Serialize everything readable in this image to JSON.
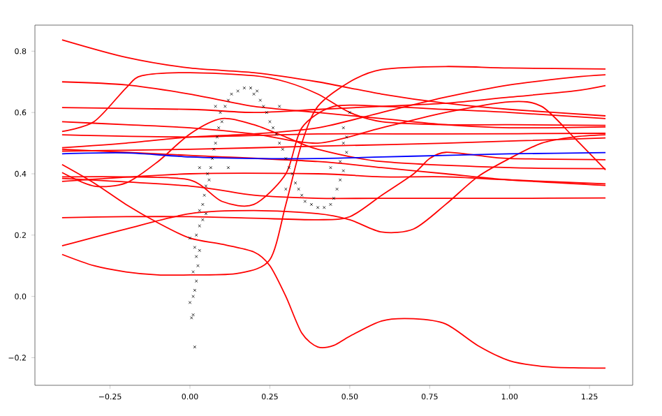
{
  "chart_data": {
    "type": "line",
    "xlim": [
      -0.485,
      1.385
    ],
    "ylim": [
      -0.29,
      0.885
    ],
    "line_style": "solid",
    "xticks": [
      {
        "value": -0.25,
        "label": "−0.25"
      },
      {
        "value": 0,
        "label": "0.00"
      },
      {
        "value": 0.25,
        "label": "0.25"
      },
      {
        "value": 0.5,
        "label": "0.50"
      },
      {
        "value": 0.75,
        "label": "0.75"
      },
      {
        "value": 1.0,
        "label": "1.00"
      },
      {
        "value": 1.25,
        "label": "1.25"
      }
    ],
    "yticks": [
      {
        "value": -0.2,
        "label": "−0.2"
      },
      {
        "value": 0,
        "label": "0.0"
      },
      {
        "value": 0.2,
        "label": "0.2"
      },
      {
        "value": 0.4,
        "label": "0.4"
      },
      {
        "value": 0.6,
        "label": "0.6"
      },
      {
        "value": 0.8,
        "label": "0.8"
      }
    ],
    "series": [
      {
        "color": "#ff0000",
        "x": [
          -0.4,
          -0.2,
          0,
          0.2,
          0.4,
          0.6,
          0.8,
          1.0,
          1.3
        ],
        "values": [
          0.837,
          0.78,
          0.745,
          0.73,
          0.7,
          0.66,
          0.63,
          0.61,
          0.589
        ]
      },
      {
        "color": "#ff0000",
        "x": [
          -0.4,
          -0.2,
          0,
          0.2,
          0.4,
          0.6,
          0.8,
          1.0,
          1.3
        ],
        "values": [
          0.7,
          0.69,
          0.66,
          0.62,
          0.6,
          0.58,
          0.56,
          0.55,
          0.553
        ]
      },
      {
        "color": "#ff0000",
        "x": [
          -0.4,
          -0.3,
          -0.2,
          -0.15,
          0,
          0.2,
          0.3,
          0.4,
          0.5,
          0.6,
          0.8,
          1.0,
          1.3
        ],
        "values": [
          0.538,
          0.57,
          0.68,
          0.72,
          0.73,
          0.72,
          0.7,
          0.66,
          0.6,
          0.57,
          0.56,
          0.56,
          0.558
        ]
      },
      {
        "color": "#ff0000",
        "x": [
          -0.4,
          -0.2,
          0,
          0.2,
          0.4,
          0.6,
          0.8,
          1.0,
          1.2,
          1.3
        ],
        "values": [
          0.485,
          0.5,
          0.52,
          0.53,
          0.55,
          0.6,
          0.65,
          0.69,
          0.715,
          0.723
        ]
      },
      {
        "color": "#ff0000",
        "x": [
          -0.4,
          0,
          0.2,
          0.4,
          0.6,
          0.8,
          1.0,
          1.2,
          1.3
        ],
        "values": [
          0.616,
          0.61,
          0.6,
          0.61,
          0.62,
          0.63,
          0.65,
          0.67,
          0.688
        ]
      },
      {
        "color": "#ff0000",
        "x": [
          -0.4,
          -0.2,
          0,
          0.2,
          0.4,
          0.6,
          0.8,
          1.0,
          1.1,
          1.2,
          1.3
        ],
        "values": [
          0.57,
          0.56,
          0.55,
          0.53,
          0.5,
          0.55,
          0.6,
          0.635,
          0.62,
          0.52,
          0.413
        ]
      },
      {
        "color": "#ff0000",
        "x": [
          -0.4,
          0,
          0.4,
          0.8,
          1.3
        ],
        "values": [
          0.527,
          0.52,
          0.53,
          0.53,
          0.532
        ]
      },
      {
        "color": "#ff0000",
        "x": [
          -0.4,
          0,
          0.4,
          0.8,
          1.3
        ],
        "values": [
          0.474,
          0.48,
          0.49,
          0.5,
          0.517
        ]
      },
      {
        "color": "#ff0000",
        "x": [
          -0.4,
          -0.3,
          -0.2,
          -0.1,
          0,
          0.15,
          0.25,
          0.3,
          0.35,
          0.4,
          0.5,
          0.6,
          0.8,
          1.0,
          1.3
        ],
        "values": [
          0.137,
          0.1,
          0.08,
          0.07,
          0.07,
          0.075,
          0.12,
          0.3,
          0.5,
          0.62,
          0.7,
          0.74,
          0.75,
          0.745,
          0.742
        ]
      },
      {
        "color": "#ff0000",
        "x": [
          -0.4,
          -0.3,
          -0.2,
          -0.1,
          0,
          0.1,
          0.2,
          0.25,
          0.3,
          0.35,
          0.4,
          0.45,
          0.5,
          0.6,
          0.7,
          0.8,
          0.9,
          1.0,
          1.1,
          1.2,
          1.3
        ],
        "values": [
          0.43,
          0.37,
          0.3,
          0.24,
          0.19,
          0.17,
          0.145,
          0.1,
          0.0,
          -0.12,
          -0.165,
          -0.16,
          -0.13,
          -0.08,
          -0.073,
          -0.09,
          -0.16,
          -0.21,
          -0.228,
          -0.233,
          -0.234
        ]
      },
      {
        "color": "#ff0000",
        "x": [
          -0.4,
          -0.3,
          -0.2,
          -0.1,
          0,
          0.1,
          0.2,
          0.3,
          0.4,
          0.6,
          1.0,
          1.3
        ],
        "values": [
          0.404,
          0.36,
          0.37,
          0.44,
          0.53,
          0.58,
          0.56,
          0.52,
          0.48,
          0.44,
          0.42,
          0.417
        ]
      },
      {
        "color": "#ff0000",
        "x": [
          -0.4,
          -0.2,
          0,
          0.1,
          0.2,
          0.3,
          0.35,
          0.45,
          0.6,
          0.8,
          1.0,
          1.3
        ],
        "values": [
          0.39,
          0.39,
          0.38,
          0.31,
          0.3,
          0.4,
          0.55,
          0.62,
          0.62,
          0.61,
          0.6,
          0.58
        ]
      },
      {
        "color": "#ff0000",
        "x": [
          -0.4,
          0,
          0.4,
          0.6,
          0.8,
          1.0,
          1.3
        ],
        "values": [
          0.375,
          0.4,
          0.4,
          0.39,
          0.39,
          0.38,
          0.367
        ]
      },
      {
        "color": "#ff0000",
        "x": [
          -0.4,
          -0.2,
          0,
          0.2,
          0.4,
          0.5,
          0.6,
          0.7,
          0.75,
          0.8,
          0.9,
          1.0,
          1.3
        ],
        "values": [
          0.257,
          0.26,
          0.26,
          0.255,
          0.25,
          0.26,
          0.33,
          0.4,
          0.45,
          0.47,
          0.46,
          0.45,
          0.446
        ]
      },
      {
        "color": "#ff0000",
        "x": [
          -0.4,
          -0.2,
          0,
          0.2,
          0.4,
          0.5,
          0.6,
          0.7,
          0.8,
          0.9,
          1.0,
          1.1,
          1.2,
          1.3
        ],
        "values": [
          0.165,
          0.22,
          0.27,
          0.28,
          0.27,
          0.25,
          0.21,
          0.22,
          0.3,
          0.39,
          0.45,
          0.5,
          0.52,
          0.527
        ]
      },
      {
        "color": "#ff0000",
        "x": [
          -0.4,
          0,
          0.2,
          0.4,
          0.6,
          1.0,
          1.3
        ],
        "values": [
          0.385,
          0.36,
          0.33,
          0.32,
          0.32,
          0.32,
          0.321
        ]
      },
      {
        "color": "#ff0000",
        "x": [
          -0.4,
          0,
          0.4,
          0.6,
          0.8,
          1.0,
          1.3
        ],
        "values": [
          0.48,
          0.46,
          0.44,
          0.42,
          0.4,
          0.38,
          0.362
        ]
      },
      {
        "color": "#0000ff",
        "x": [
          -0.4,
          -0.2,
          0,
          0.2,
          0.4,
          0.6,
          0.8,
          1.0,
          1.3
        ],
        "values": [
          0.465,
          0.468,
          0.455,
          0.45,
          0.45,
          0.455,
          0.46,
          0.465,
          0.469
        ]
      },
      {
        "type": "scatter",
        "marker": "cross",
        "color": "#000000",
        "x": [
          0.015,
          0.005,
          0.01,
          0.0,
          0.01,
          0.015,
          0.02,
          0.01,
          0.025,
          0.02,
          0.015,
          0.0,
          0.03,
          0.02,
          0.03,
          0.04,
          0.03,
          0.04,
          0.05,
          0.045,
          0.05,
          0.06,
          0.055,
          0.065,
          0.07,
          0.075,
          0.08,
          0.085,
          0.09,
          0.1,
          0.095,
          0.11,
          0.12,
          0.13,
          0.15,
          0.17,
          0.19,
          0.21,
          0.2,
          0.22,
          0.23,
          0.24,
          0.25,
          0.26,
          0.27,
          0.28,
          0.29,
          0.3,
          0.31,
          0.32,
          0.33,
          0.34,
          0.35,
          0.36,
          0.38,
          0.4,
          0.42,
          0.44,
          0.45,
          0.46,
          0.47,
          0.48,
          0.47,
          0.49,
          0.48,
          0.49,
          0.48,
          0.5,
          0.12,
          0.03,
          0.08,
          0.28,
          0.44,
          0.3
        ],
        "values": [
          -0.165,
          -0.07,
          -0.06,
          -0.02,
          0.0,
          0.02,
          0.05,
          0.08,
          0.1,
          0.13,
          0.16,
          0.19,
          0.15,
          0.2,
          0.23,
          0.25,
          0.28,
          0.3,
          0.27,
          0.33,
          0.36,
          0.38,
          0.4,
          0.42,
          0.45,
          0.48,
          0.5,
          0.52,
          0.55,
          0.57,
          0.6,
          0.62,
          0.64,
          0.66,
          0.67,
          0.68,
          0.68,
          0.67,
          0.66,
          0.64,
          0.62,
          0.6,
          0.57,
          0.55,
          0.53,
          0.5,
          0.48,
          0.45,
          0.42,
          0.4,
          0.37,
          0.35,
          0.33,
          0.31,
          0.3,
          0.29,
          0.29,
          0.3,
          0.32,
          0.35,
          0.38,
          0.41,
          0.44,
          0.47,
          0.5,
          0.52,
          0.55,
          0.6,
          0.42,
          0.42,
          0.62,
          0.62,
          0.42,
          0.35
        ]
      }
    ]
  }
}
